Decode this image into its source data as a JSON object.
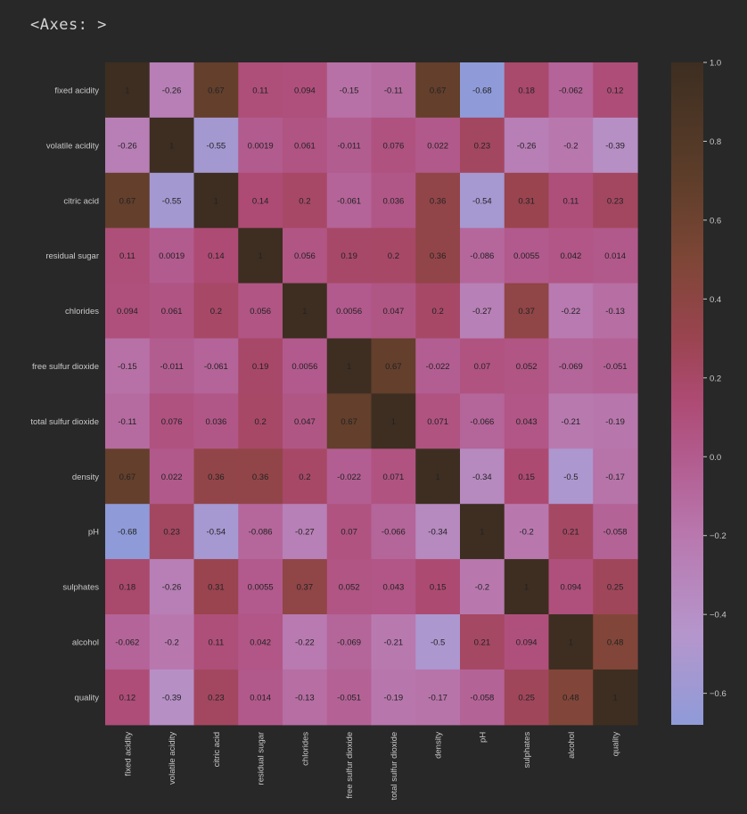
{
  "output_label": "<Axes: >",
  "colors": {
    "background": "#282828",
    "tick_text": "#c8c8c8",
    "cell_text": "#222222"
  },
  "chart_data": {
    "type": "heatmap",
    "title": "",
    "labels": [
      "fixed acidity",
      "volatile acidity",
      "citric acid",
      "residual sugar",
      "chlorides",
      "free sulfur dioxide",
      "total sulfur dioxide",
      "density",
      "pH",
      "sulphates",
      "alcohol",
      "quality"
    ],
    "values": [
      [
        1,
        -0.26,
        0.67,
        0.11,
        0.094,
        -0.15,
        -0.11,
        0.67,
        -0.68,
        0.18,
        -0.062,
        0.12
      ],
      [
        -0.26,
        1,
        -0.55,
        0.0019,
        0.061,
        -0.011,
        0.076,
        0.022,
        0.23,
        -0.26,
        -0.2,
        -0.39
      ],
      [
        0.67,
        -0.55,
        1,
        0.14,
        0.2,
        -0.061,
        0.036,
        0.36,
        -0.54,
        0.31,
        0.11,
        0.23
      ],
      [
        0.11,
        0.0019,
        0.14,
        1,
        0.056,
        0.19,
        0.2,
        0.36,
        -0.086,
        0.0055,
        0.042,
        0.014
      ],
      [
        0.094,
        0.061,
        0.2,
        0.056,
        1,
        0.0056,
        0.047,
        0.2,
        -0.27,
        0.37,
        -0.22,
        -0.13
      ],
      [
        -0.15,
        -0.011,
        -0.061,
        0.19,
        0.0056,
        1,
        0.67,
        -0.022,
        0.07,
        0.052,
        -0.069,
        -0.051
      ],
      [
        -0.11,
        0.076,
        0.036,
        0.2,
        0.047,
        0.67,
        1,
        0.071,
        -0.066,
        0.043,
        -0.21,
        -0.19
      ],
      [
        0.67,
        0.022,
        0.36,
        0.36,
        0.2,
        -0.022,
        0.071,
        1,
        -0.34,
        0.15,
        -0.5,
        -0.17
      ],
      [
        -0.68,
        0.23,
        -0.54,
        -0.086,
        -0.27,
        0.07,
        -0.066,
        -0.34,
        1,
        -0.2,
        0.21,
        -0.058
      ],
      [
        0.18,
        -0.26,
        0.31,
        0.0055,
        0.37,
        0.052,
        0.043,
        0.15,
        -0.2,
        1,
        0.094,
        0.25
      ],
      [
        -0.062,
        -0.2,
        0.11,
        0.042,
        -0.22,
        -0.069,
        -0.21,
        -0.5,
        0.21,
        0.094,
        1,
        0.48
      ],
      [
        0.12,
        -0.39,
        0.23,
        0.014,
        -0.13,
        -0.051,
        -0.19,
        -0.17,
        -0.058,
        0.25,
        0.48,
        1
      ]
    ],
    "vmin": -0.68,
    "vmax": 1.0,
    "colorbar": {
      "ticks": [
        1.0,
        0.8,
        0.6,
        0.4,
        0.2,
        0.0,
        -0.2,
        -0.4,
        -0.6
      ],
      "tick_labels": [
        "1.0",
        "0.8",
        "0.6",
        "0.4",
        "0.2",
        "0.0",
        "−0.2",
        "−0.4",
        "−0.6"
      ]
    },
    "colormap": [
      {
        "v": -0.68,
        "c": "#8f9bd8"
      },
      {
        "v": -0.45,
        "c": "#b596cc"
      },
      {
        "v": -0.2,
        "c": "#b878ae"
      },
      {
        "v": 0.0,
        "c": "#b25b8e"
      },
      {
        "v": 0.15,
        "c": "#ad4a72"
      },
      {
        "v": 0.3,
        "c": "#9a4450"
      },
      {
        "v": 0.5,
        "c": "#7e4636"
      },
      {
        "v": 0.7,
        "c": "#5e3e2a"
      },
      {
        "v": 1.0,
        "c": "#3d2e21"
      }
    ]
  }
}
